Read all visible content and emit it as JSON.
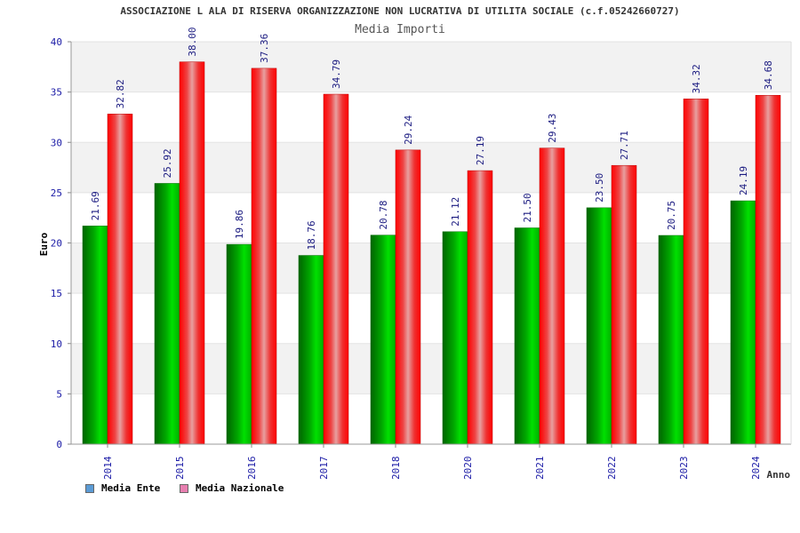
{
  "chart_data": {
    "type": "bar",
    "title": "ASSOCIAZIONE L ALA DI RISERVA ORGANIZZAZIONE NON LUCRATIVA DI UTILITA SOCIALE (c.f.05242660727)",
    "subtitle": "Media Importi",
    "xlabel": "Anno",
    "ylabel": "Euro",
    "ylim": [
      0,
      40
    ],
    "yticks": [
      0,
      5,
      10,
      15,
      20,
      25,
      30,
      35,
      40
    ],
    "grid": true,
    "legend_position": "bottom-left",
    "categories": [
      "2014",
      "2015",
      "2016",
      "2017",
      "2018",
      "2020",
      "2021",
      "2022",
      "2023",
      "2024"
    ],
    "series": [
      {
        "name": "Media Ente",
        "color": "#00b000",
        "legend_color": "#5b9bd5",
        "values": [
          21.69,
          25.92,
          19.86,
          18.76,
          20.78,
          21.12,
          21.5,
          23.5,
          20.75,
          24.19
        ],
        "labels": [
          "21.69",
          "25.92",
          "19.86",
          "18.76",
          "20.78",
          "21.12",
          "21.50",
          "23.50",
          "20.75",
          "24.19"
        ]
      },
      {
        "name": "Media Nazionale",
        "color": "#ee1111",
        "legend_color": "#e87fb0",
        "values": [
          32.82,
          38.0,
          37.36,
          34.79,
          29.24,
          27.19,
          29.43,
          27.71,
          34.32,
          34.68
        ],
        "labels": [
          "32.82",
          "38.00",
          "37.36",
          "34.79",
          "29.24",
          "27.19",
          "29.43",
          "27.71",
          "34.32",
          "34.68"
        ]
      }
    ]
  }
}
